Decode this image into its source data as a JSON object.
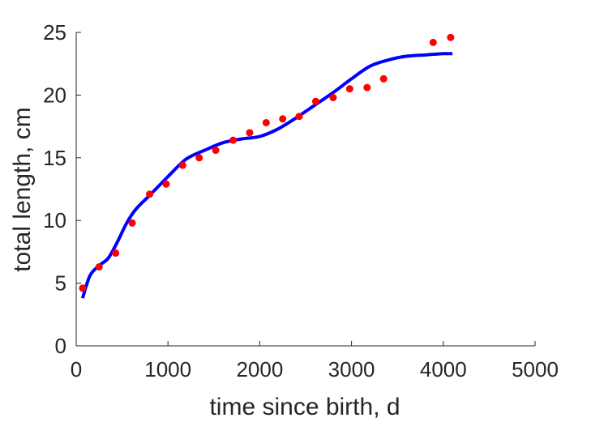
{
  "chart_data": {
    "type": "scatter",
    "title": "",
    "xlabel": "time since birth, d",
    "ylabel": "total length, cm",
    "xlim": [
      0,
      5000
    ],
    "ylim": [
      0,
      25
    ],
    "xticks": [
      0,
      1000,
      2000,
      3000,
      4000,
      5000
    ],
    "yticks": [
      0,
      5,
      10,
      15,
      20,
      25
    ],
    "grid": false,
    "legend": "none",
    "series": [
      {
        "kind": "points",
        "color": "#ff0000",
        "x": [
          70,
          250,
          430,
          610,
          800,
          980,
          1160,
          1340,
          1520,
          1710,
          1890,
          2070,
          2250,
          2430,
          2610,
          2800,
          2980,
          3170,
          3350,
          3890,
          4080
        ],
        "y": [
          4.6,
          6.3,
          7.4,
          9.8,
          12.1,
          12.9,
          14.4,
          15.0,
          15.6,
          16.4,
          17.0,
          17.8,
          18.1,
          18.3,
          19.5,
          19.8,
          20.5,
          20.6,
          21.3,
          24.2,
          24.6
        ]
      },
      {
        "kind": "line",
        "color": "#0000ff",
        "x": [
          70,
          150,
          250,
          350,
          450,
          550,
          650,
          800,
          1000,
          1200,
          1400,
          1600,
          1800,
          2000,
          2200,
          2400,
          2600,
          2800,
          3000,
          3200,
          3400,
          3600,
          3800,
          4000,
          4100
        ],
        "y": [
          3.8,
          5.6,
          6.4,
          7.0,
          8.3,
          9.8,
          10.9,
          12.0,
          13.5,
          14.9,
          15.6,
          16.2,
          16.5,
          16.7,
          17.3,
          18.2,
          19.2,
          20.2,
          21.3,
          22.3,
          22.8,
          23.1,
          23.2,
          23.3,
          23.3
        ]
      }
    ]
  }
}
